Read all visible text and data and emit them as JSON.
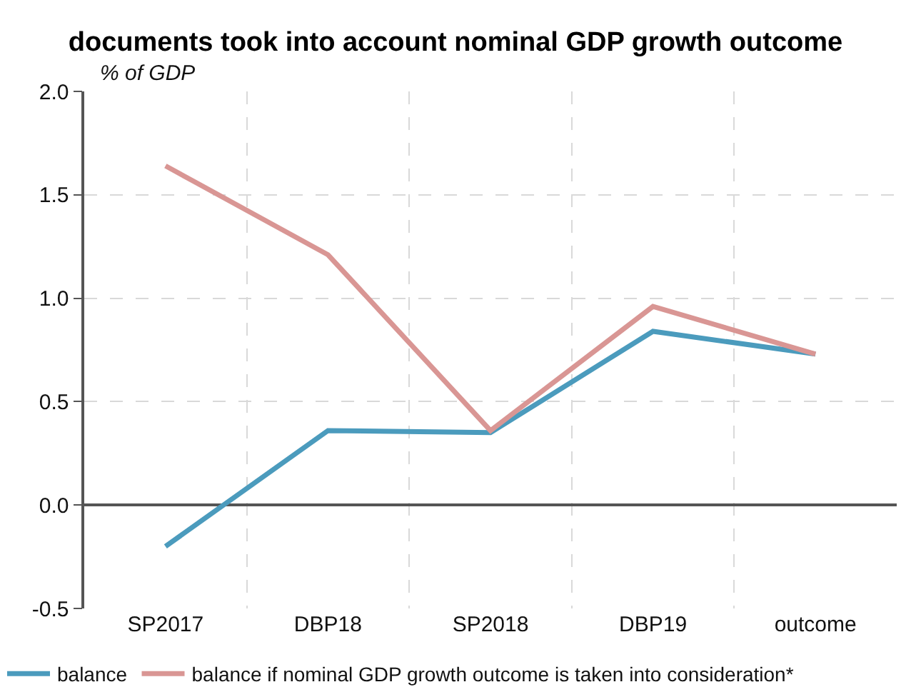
{
  "chart_data": {
    "type": "line",
    "title": "documents took into account nominal GDP growth outcome",
    "ylabel": "% of GDP",
    "categories": [
      "SP2017",
      "DBP18",
      "SP2018",
      "DBP19",
      "outcome"
    ],
    "series": [
      {
        "name": "balance",
        "color": "#4b9bbd",
        "values": [
          -0.2,
          0.36,
          0.35,
          0.84,
          0.73
        ]
      },
      {
        "name": "balance if nominal GDP growth outcome is taken into consideration*",
        "color": "#d99694",
        "values": [
          1.64,
          1.21,
          0.36,
          0.96,
          0.73
        ]
      }
    ],
    "ylim": [
      -0.5,
      2.0
    ],
    "yticks": [
      -0.5,
      {
        "value": 0,
        "label": "0.0"
      },
      0.5,
      {
        "value": 1,
        "label": "1.0"
      },
      1.5,
      {
        "value": 2,
        "label": "2.0"
      }
    ],
    "grid": true,
    "legend": "bottom",
    "line_style": "solid"
  }
}
